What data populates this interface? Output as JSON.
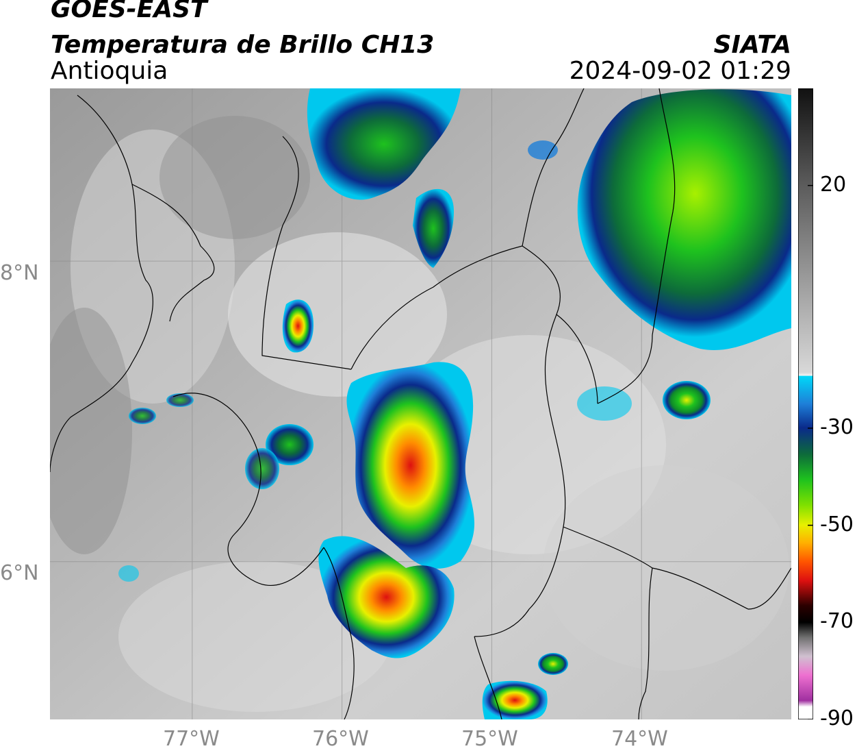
{
  "header": {
    "title_line1": "GOES-EAST",
    "title_line2": "Temperatura de Brillo CH13",
    "subtitle": "Antioquia",
    "source": "SIATA",
    "datetime": "2024-09-02 01:29"
  },
  "map": {
    "lon_range": [
      -77.95,
      -73.0
    ],
    "lat_range": [
      4.95,
      9.15
    ],
    "lat_labels": [
      {
        "lat": 8,
        "label": "8°N"
      },
      {
        "lat": 6,
        "label": "6°N"
      }
    ],
    "lon_labels": [
      {
        "lon": -77,
        "label": "77°W"
      },
      {
        "lon": -76,
        "label": "76°W"
      },
      {
        "lon": -75,
        "label": "75°W"
      },
      {
        "lon": -74,
        "label": "74°W"
      }
    ]
  },
  "colorbar": {
    "ticks": [
      "20",
      "-30",
      "-50",
      "-70",
      "-90"
    ],
    "tick_values": [
      20,
      -30,
      -50,
      -70,
      -90
    ],
    "range": [
      -90,
      40
    ],
    "colors": {
      "warm_gray_top": "#111111",
      "light": "#f2f2f2",
      "cyan": "#00c8ee",
      "navy": "#0a2a8a",
      "green": "#1ec21e",
      "yellow": "#e8f000",
      "orange": "#ff8c00",
      "red": "#dd1010",
      "magenta": "#d040c0"
    }
  }
}
